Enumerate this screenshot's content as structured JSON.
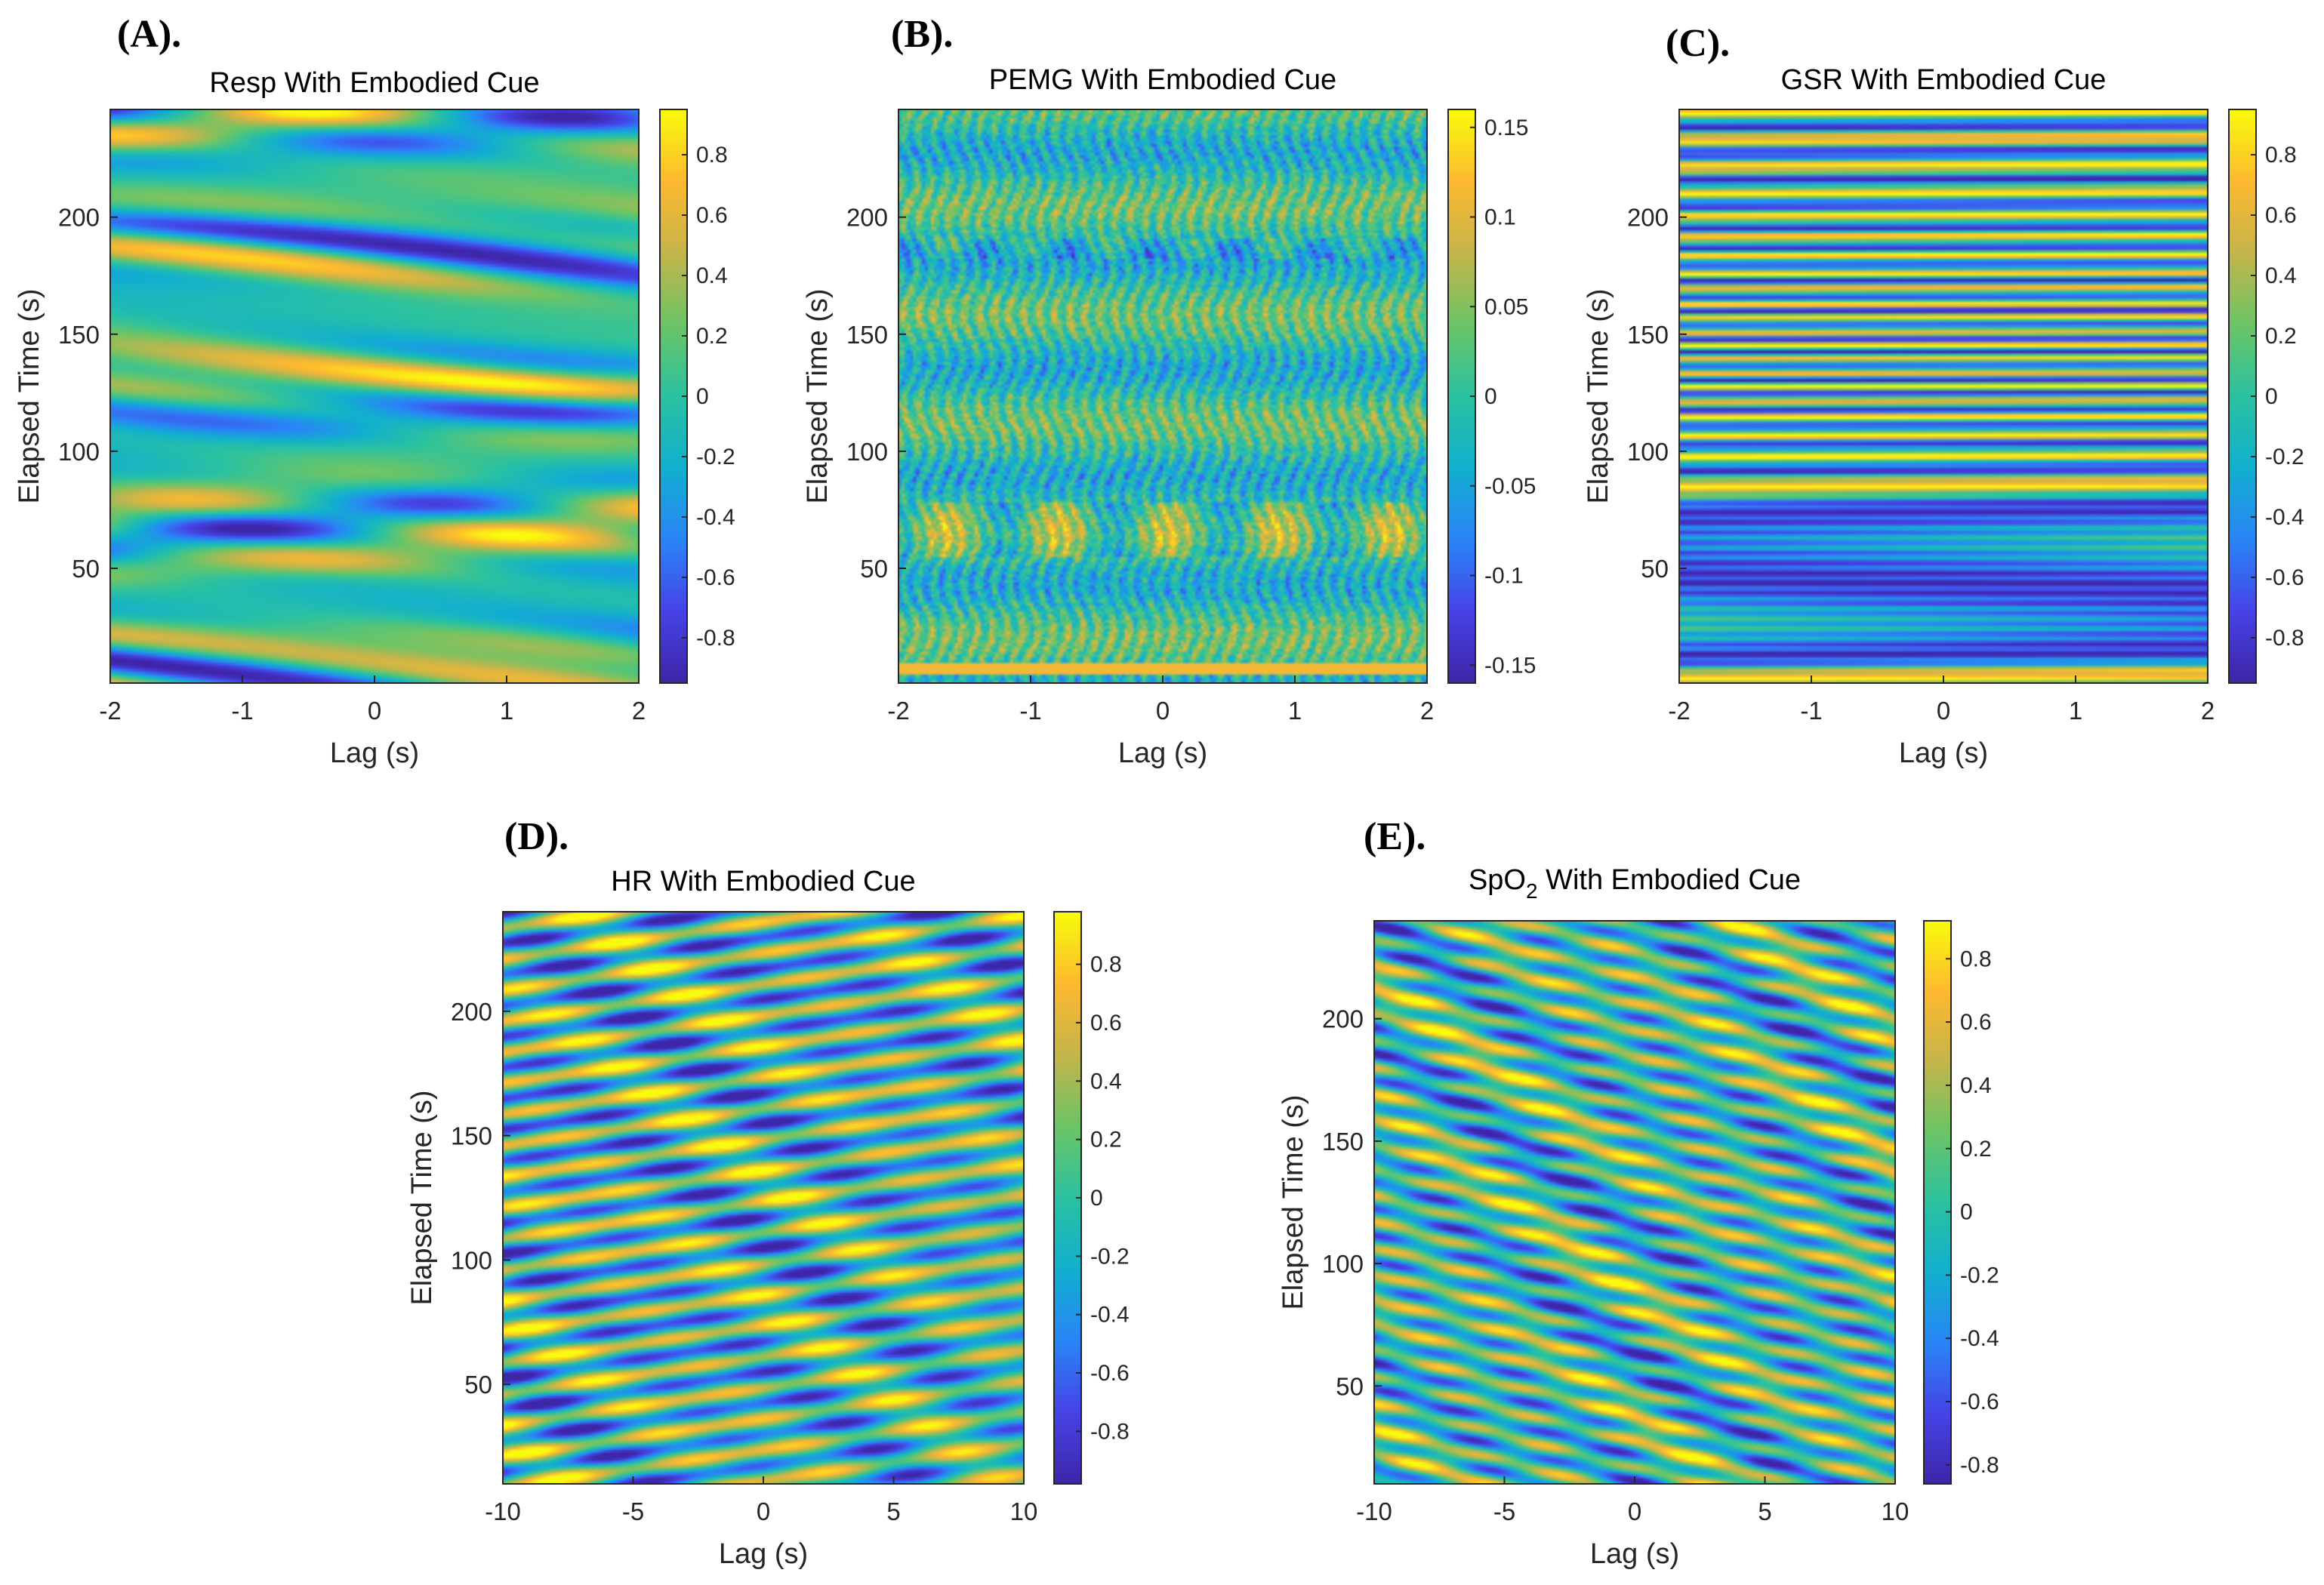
{
  "colormap": {
    "name": "parula",
    "stops": [
      "#3e26a8",
      "#4744e8",
      "#2a86f7",
      "#12b0cf",
      "#2bc2a1",
      "#6cc567",
      "#c5b54c",
      "#feb930",
      "#f9fb0e"
    ]
  },
  "chart_data": [
    {
      "panel_label": "(A).",
      "type": "heatmap",
      "title": "Resp With Embodied Cue",
      "title_sub": "",
      "title_tail": "",
      "xlabel": "Lag (s)",
      "ylabel": "Elapsed Time (s)",
      "xlim": [
        -2,
        2
      ],
      "ylim": [
        1,
        246
      ],
      "xticks": [
        -2,
        -1,
        0,
        1,
        2
      ],
      "xtick_labels": [
        "-2",
        "-1",
        "0",
        "1",
        "2"
      ],
      "yticks": [
        50,
        100,
        150,
        200
      ],
      "ytick_labels": [
        "50",
        "100",
        "150",
        "200"
      ],
      "clim": [
        -0.95,
        0.95
      ],
      "cticks": [
        -0.8,
        -0.6,
        -0.4,
        -0.2,
        0,
        0.2,
        0.4,
        0.6,
        0.8
      ],
      "ctick_labels": [
        "-0.8",
        "-0.6",
        "-0.4",
        "-0.2",
        "0",
        "0.2",
        "0.4",
        "0.6",
        "0.8"
      ],
      "pattern": {
        "style": "diag",
        "seed": 11,
        "band_period": 38,
        "slope": 9,
        "drift": 22,
        "ripple": 0.0
      }
    },
    {
      "panel_label": "(B).",
      "type": "heatmap",
      "title": "PEMG With Embodied Cue",
      "title_sub": "",
      "title_tail": "",
      "xlabel": "Lag (s)",
      "ylabel": "Elapsed Time (s)",
      "xlim": [
        -2,
        2
      ],
      "ylim": [
        1,
        246
      ],
      "xticks": [
        -2,
        -1,
        0,
        1,
        2
      ],
      "xtick_labels": [
        "-2",
        "-1",
        "0",
        "1",
        "2"
      ],
      "yticks": [
        50,
        100,
        150,
        200
      ],
      "ytick_labels": [
        "50",
        "100",
        "150",
        "200"
      ],
      "clim": [
        -0.16,
        0.16
      ],
      "cticks": [
        -0.15,
        -0.1,
        -0.05,
        0,
        0.05,
        0.1,
        0.15
      ],
      "ctick_labels": [
        "-0.15",
        "-0.1",
        "-0.05",
        "0",
        "0.05",
        "0.1",
        "0.15"
      ],
      "pattern": {
        "style": "noise",
        "seed": 23,
        "band_period": 6,
        "slope": 0,
        "drift": 0,
        "ripple": 0.0
      }
    },
    {
      "panel_label": "(C).",
      "type": "heatmap",
      "title": "GSR With Embodied Cue",
      "title_sub": "",
      "title_tail": "",
      "xlabel": "Lag (s)",
      "ylabel": "Elapsed Time (s)",
      "xlim": [
        -2,
        2
      ],
      "ylim": [
        1,
        246
      ],
      "xticks": [
        -2,
        -1,
        0,
        1,
        2
      ],
      "xtick_labels": [
        "-2",
        "-1",
        "0",
        "1",
        "2"
      ],
      "yticks": [
        50,
        100,
        150,
        200
      ],
      "ytick_labels": [
        "50",
        "100",
        "150",
        "200"
      ],
      "clim": [
        -0.95,
        0.95
      ],
      "cticks": [
        -0.8,
        -0.6,
        -0.4,
        -0.2,
        0,
        0.2,
        0.4,
        0.6,
        0.8
      ],
      "ctick_labels": [
        "-0.8",
        "-0.6",
        "-0.4",
        "-0.2",
        "0",
        "0.2",
        "0.4",
        "0.6",
        "0.8"
      ],
      "pattern": {
        "style": "horiz",
        "seed": 37,
        "band_period": 9,
        "slope": 0.6,
        "drift": 0,
        "ripple": 0.0
      }
    },
    {
      "panel_label": "(D).",
      "type": "heatmap",
      "title": "HR With Embodied Cue",
      "title_sub": "",
      "title_tail": "",
      "xlabel": "Lag (s)",
      "ylabel": "Elapsed Time (s)",
      "xlim": [
        -10,
        10
      ],
      "ylim": [
        10,
        240
      ],
      "xticks": [
        -10,
        -5,
        0,
        5,
        10
      ],
      "xtick_labels": [
        "-10",
        "-5",
        "0",
        "5",
        "10"
      ],
      "yticks": [
        50,
        100,
        150,
        200
      ],
      "ytick_labels": [
        "50",
        "100",
        "150",
        "200"
      ],
      "clim": [
        -0.98,
        0.98
      ],
      "cticks": [
        -0.8,
        -0.6,
        -0.4,
        -0.2,
        0,
        0.2,
        0.4,
        0.6,
        0.8
      ],
      "ctick_labels": [
        "-0.8",
        "-0.6",
        "-0.4",
        "-0.2",
        "0",
        "0.2",
        "0.4",
        "0.6",
        "0.8"
      ],
      "pattern": {
        "style": "blob",
        "seed": 41,
        "band_period": 13,
        "slope": 0.8,
        "drift": 0,
        "ripple": 0.0
      }
    },
    {
      "panel_label": "(E).",
      "type": "heatmap",
      "title": "SpO",
      "title_sub": "2",
      "title_tail": " With Embodied Cue",
      "xlabel": "Lag (s)",
      "ylabel": "Elapsed Time (s)",
      "xlim": [
        -10,
        10
      ],
      "ylim": [
        10,
        240
      ],
      "xticks": [
        -10,
        -5,
        0,
        5,
        10
      ],
      "xtick_labels": [
        "-10",
        "-5",
        "0",
        "5",
        "10"
      ],
      "yticks": [
        50,
        100,
        150,
        200
      ],
      "ytick_labels": [
        "50",
        "100",
        "150",
        "200"
      ],
      "clim": [
        -0.86,
        0.92
      ],
      "cticks": [
        -0.8,
        -0.6,
        -0.4,
        -0.2,
        0,
        0.2,
        0.4,
        0.6,
        0.8
      ],
      "ctick_labels": [
        "-0.8",
        "-0.6",
        "-0.4",
        "-0.2",
        "0",
        "0.2",
        "0.4",
        "0.6",
        "0.8"
      ],
      "pattern": {
        "style": "blob",
        "seed": 53,
        "band_period": 11,
        "slope": -1.4,
        "drift": 0,
        "ripple": 0.0
      }
    }
  ]
}
